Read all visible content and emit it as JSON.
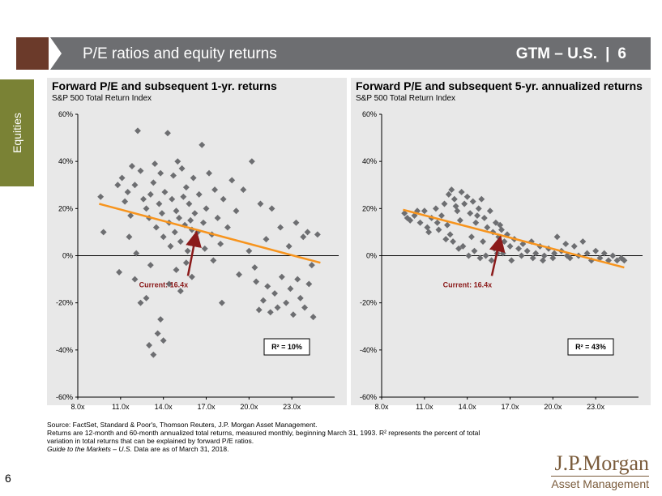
{
  "header": {
    "title": "P/E ratios and equity returns",
    "gtm": "GTM – U.S.",
    "separator": "|",
    "slide_number": "6"
  },
  "side_tab": {
    "label": "Equities"
  },
  "colors": {
    "points": "#6d6e71",
    "trend": "#f7941d",
    "arrow": "#8b1a1a",
    "banner": "#6d6e71",
    "side_tab": "#7a8235"
  },
  "chart_data": [
    {
      "type": "scatter",
      "title": "Forward P/E and subsequent 1-yr. returns",
      "subtitle": "S&P 500 Total Return Index",
      "xlim": [
        8,
        26
      ],
      "ylim": [
        -60,
        60
      ],
      "x_ticks": [
        8,
        11,
        14,
        17,
        20,
        23
      ],
      "x_tick_labels": [
        "8.0x",
        "11.0x",
        "14.0x",
        "17.0x",
        "20.0x",
        "23.0x"
      ],
      "y_ticks": [
        -60,
        -40,
        -20,
        0,
        20,
        40,
        60
      ],
      "y_tick_labels": [
        "-60%",
        "-40%",
        "-20%",
        "0%",
        "20%",
        "40%",
        "60%"
      ],
      "trendline": [
        [
          9.5,
          22
        ],
        [
          25,
          -3
        ]
      ],
      "r2_label": "R² = 10%",
      "annotation": {
        "text": "Current: 16.4x",
        "point": [
          16.4,
          10
        ]
      },
      "points": [
        [
          9.6,
          25
        ],
        [
          9.8,
          10
        ],
        [
          10.8,
          30
        ],
        [
          10.9,
          -7
        ],
        [
          11.1,
          33
        ],
        [
          11.3,
          23
        ],
        [
          11.5,
          27
        ],
        [
          11.7,
          17
        ],
        [
          11.8,
          38
        ],
        [
          12.0,
          30
        ],
        [
          12.2,
          53
        ],
        [
          12.4,
          36
        ],
        [
          12.6,
          24
        ],
        [
          12.8,
          20
        ],
        [
          13.0,
          16
        ],
        [
          13.1,
          26
        ],
        [
          13.3,
          31
        ],
        [
          13.4,
          39
        ],
        [
          13.5,
          12
        ],
        [
          13.7,
          22
        ],
        [
          13.8,
          35
        ],
        [
          13.9,
          18
        ],
        [
          14.0,
          8
        ],
        [
          14.1,
          27
        ],
        [
          14.3,
          52
        ],
        [
          14.4,
          14
        ],
        [
          14.5,
          4
        ],
        [
          14.6,
          24
        ],
        [
          14.7,
          34
        ],
        [
          14.8,
          10
        ],
        [
          14.9,
          19
        ],
        [
          15.0,
          40
        ],
        [
          15.1,
          16
        ],
        [
          15.2,
          6
        ],
        [
          15.3,
          37
        ],
        [
          15.4,
          25
        ],
        [
          15.5,
          13
        ],
        [
          15.6,
          29
        ],
        [
          15.7,
          2
        ],
        [
          15.8,
          22
        ],
        [
          15.9,
          15
        ],
        [
          16.0,
          11
        ],
        [
          16.1,
          33
        ],
        [
          16.2,
          18
        ],
        [
          16.3,
          7
        ],
        [
          16.4,
          10
        ],
        [
          16.5,
          26
        ],
        [
          16.7,
          47
        ],
        [
          16.8,
          14
        ],
        [
          16.9,
          3
        ],
        [
          17.0,
          20
        ],
        [
          17.2,
          35
        ],
        [
          17.4,
          9
        ],
        [
          17.6,
          28
        ],
        [
          17.8,
          16
        ],
        [
          18.0,
          5
        ],
        [
          18.2,
          24
        ],
        [
          18.5,
          12
        ],
        [
          18.8,
          32
        ],
        [
          19.1,
          19
        ],
        [
          12.0,
          -10
        ],
        [
          12.4,
          -20
        ],
        [
          12.8,
          -18
        ],
        [
          13.0,
          -38
        ],
        [
          13.3,
          -42
        ],
        [
          13.6,
          -33
        ],
        [
          14.0,
          -36
        ],
        [
          13.8,
          -27
        ],
        [
          14.4,
          -12
        ],
        [
          14.9,
          -6
        ],
        [
          15.2,
          -15
        ],
        [
          15.6,
          -3
        ],
        [
          16.0,
          -9
        ],
        [
          11.6,
          8
        ],
        [
          12.1,
          1
        ],
        [
          13.1,
          -4
        ],
        [
          17.5,
          -2
        ],
        [
          18.1,
          -20
        ],
        [
          19.3,
          -8
        ],
        [
          20.0,
          2
        ],
        [
          20.2,
          40
        ],
        [
          20.5,
          -11
        ],
        [
          20.7,
          -23
        ],
        [
          21.0,
          -19
        ],
        [
          21.3,
          -13
        ],
        [
          21.5,
          -24
        ],
        [
          21.8,
          -16
        ],
        [
          22.0,
          -22
        ],
        [
          22.3,
          -9
        ],
        [
          22.6,
          -20
        ],
        [
          22.9,
          -14
        ],
        [
          23.1,
          -25
        ],
        [
          23.4,
          -10
        ],
        [
          23.6,
          -18
        ],
        [
          23.9,
          -22
        ],
        [
          24.2,
          -12
        ],
        [
          24.5,
          -26
        ],
        [
          20.8,
          22
        ],
        [
          21.6,
          20
        ],
        [
          22.2,
          12
        ],
        [
          22.8,
          4
        ],
        [
          23.3,
          14
        ],
        [
          23.8,
          8
        ],
        [
          24.1,
          10
        ],
        [
          24.4,
          -4
        ],
        [
          24.8,
          9
        ],
        [
          20.4,
          -5
        ],
        [
          21.2,
          7
        ],
        [
          19.6,
          28
        ]
      ]
    },
    {
      "type": "scatter",
      "title": "Forward P/E and subsequent 5-yr. annualized returns",
      "subtitle": "S&P 500 Total Return Index",
      "xlim": [
        8,
        26
      ],
      "ylim": [
        -60,
        60
      ],
      "x_ticks": [
        8,
        11,
        14,
        17,
        20,
        23
      ],
      "x_tick_labels": [
        "8.0x",
        "11.0x",
        "14.0x",
        "17.0x",
        "20.0x",
        "23.0x"
      ],
      "y_ticks": [
        -60,
        -40,
        -20,
        0,
        20,
        40,
        60
      ],
      "y_tick_labels": [
        "-60%",
        "-40%",
        "-20%",
        "0%",
        "20%",
        "40%",
        "60%"
      ],
      "trendline": [
        [
          9.5,
          19.5
        ],
        [
          25,
          -5
        ]
      ],
      "r2_label": "R² = 43%",
      "annotation": {
        "text": "Current: 16.4x",
        "point": [
          16.4,
          8
        ]
      },
      "points": [
        [
          9.6,
          18
        ],
        [
          9.8,
          16
        ],
        [
          10.3,
          17
        ],
        [
          10.7,
          14
        ],
        [
          11.0,
          19
        ],
        [
          11.2,
          12
        ],
        [
          11.5,
          16
        ],
        [
          11.8,
          20
        ],
        [
          12.0,
          11
        ],
        [
          12.2,
          17
        ],
        [
          12.4,
          22
        ],
        [
          12.6,
          13
        ],
        [
          12.7,
          26
        ],
        [
          12.9,
          28
        ],
        [
          13.1,
          24
        ],
        [
          13.3,
          19
        ],
        [
          13.5,
          15
        ],
        [
          13.6,
          27
        ],
        [
          13.8,
          22
        ],
        [
          14.0,
          25
        ],
        [
          14.2,
          18
        ],
        [
          14.4,
          23
        ],
        [
          14.6,
          14
        ],
        [
          14.8,
          20
        ],
        [
          15.0,
          24
        ],
        [
          15.2,
          16
        ],
        [
          15.4,
          12
        ],
        [
          15.6,
          19
        ],
        [
          15.8,
          10
        ],
        [
          16.0,
          14
        ],
        [
          16.2,
          8
        ],
        [
          16.4,
          11
        ],
        [
          16.6,
          6
        ],
        [
          16.8,
          9
        ],
        [
          17.0,
          4
        ],
        [
          17.3,
          7
        ],
        [
          17.6,
          3
        ],
        [
          17.9,
          5
        ],
        [
          18.2,
          2
        ],
        [
          18.5,
          6
        ],
        [
          18.8,
          1
        ],
        [
          19.1,
          4
        ],
        [
          19.4,
          0
        ],
        [
          19.7,
          3
        ],
        [
          20.0,
          -1
        ],
        [
          20.3,
          8
        ],
        [
          20.6,
          2
        ],
        [
          20.9,
          5
        ],
        [
          21.2,
          -1
        ],
        [
          21.5,
          4
        ],
        [
          21.8,
          0
        ],
        [
          22.1,
          6
        ],
        [
          22.4,
          1
        ],
        [
          22.7,
          -2
        ],
        [
          23.0,
          2
        ],
        [
          23.3,
          -1
        ],
        [
          23.6,
          1
        ],
        [
          23.9,
          -2
        ],
        [
          24.2,
          0
        ],
        [
          24.5,
          -2
        ],
        [
          24.8,
          -1
        ],
        [
          25.0,
          -2
        ],
        [
          13.7,
          4
        ],
        [
          14.1,
          0
        ],
        [
          14.5,
          2
        ],
        [
          14.9,
          -1
        ],
        [
          15.3,
          0
        ],
        [
          15.7,
          -2
        ],
        [
          16.1,
          1
        ],
        [
          13.0,
          6
        ],
        [
          12.8,
          9
        ],
        [
          13.4,
          3
        ],
        [
          14.3,
          8
        ],
        [
          15.1,
          6
        ],
        [
          15.9,
          3
        ],
        [
          16.5,
          1
        ],
        [
          17.1,
          -2
        ],
        [
          17.8,
          0
        ],
        [
          18.6,
          -1
        ],
        [
          19.3,
          -2
        ],
        [
          20.1,
          1
        ],
        [
          21.0,
          0
        ],
        [
          11.3,
          10
        ],
        [
          11.9,
          14
        ],
        [
          12.5,
          7
        ],
        [
          10.5,
          19
        ],
        [
          10.0,
          15
        ],
        [
          13.2,
          21
        ],
        [
          14.7,
          17
        ],
        [
          16.3,
          13
        ]
      ]
    }
  ],
  "footnote": {
    "line1": "Source: FactSet, Standard & Poor's, Thomson Reuters, J.P. Morgan Asset Management.",
    "line2": "Returns are 12-month and 60-month annualized total returns, measured monthly, beginning March 31, 1993. R² represents the percent of total",
    "line3": "variation in total returns that can be explained by forward P/E ratios.",
    "line4_italic": "Guide to the Markets – U.S.",
    "line4_rest": " Data are as of March 31, 2018."
  },
  "page_number": "6",
  "logo": {
    "name": "J.P.Morgan",
    "sub": "Asset Management"
  }
}
